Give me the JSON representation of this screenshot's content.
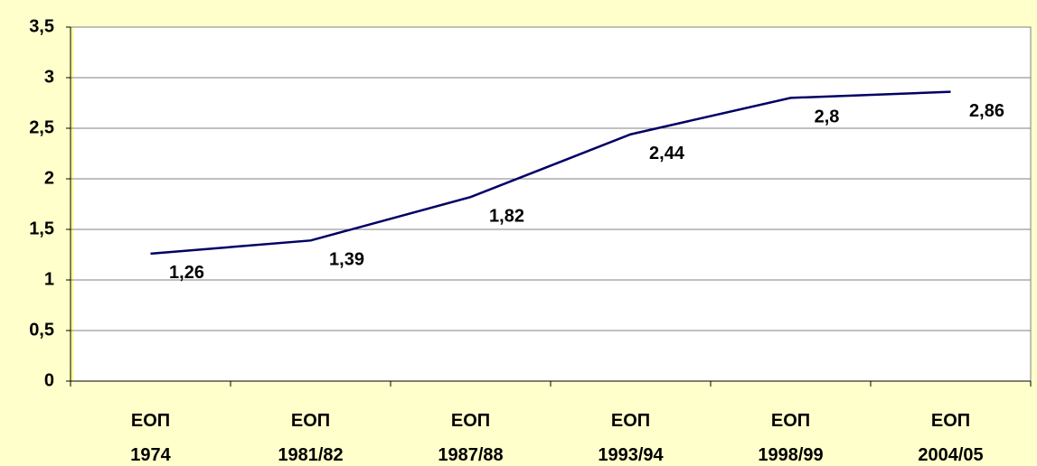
{
  "chart_data": {
    "type": "line",
    "categories": [
      "ЕОП 1974",
      "ЕОП 1981/82",
      "ЕОП 1987/88",
      "ЕОП 1993/94",
      "ЕОП 1998/99",
      "ЕОП 2004/05"
    ],
    "values": [
      1.26,
      1.39,
      1.82,
      2.44,
      2.8,
      2.86
    ],
    "value_labels": [
      "1,26",
      "1,39",
      "1,82",
      "2,44",
      "2,8",
      "2,86"
    ],
    "color": "#000066",
    "ylim": [
      0,
      3.5
    ],
    "yticks": [
      0,
      {
        "value": 0.5,
        "label": "0,5"
      },
      1,
      {
        "value": 1.5,
        "label": "1,5"
      },
      2,
      {
        "value": 2.5,
        "label": "2,5"
      },
      3,
      {
        "value": 3.5,
        "label": "3,5"
      }
    ],
    "grid": true
  }
}
